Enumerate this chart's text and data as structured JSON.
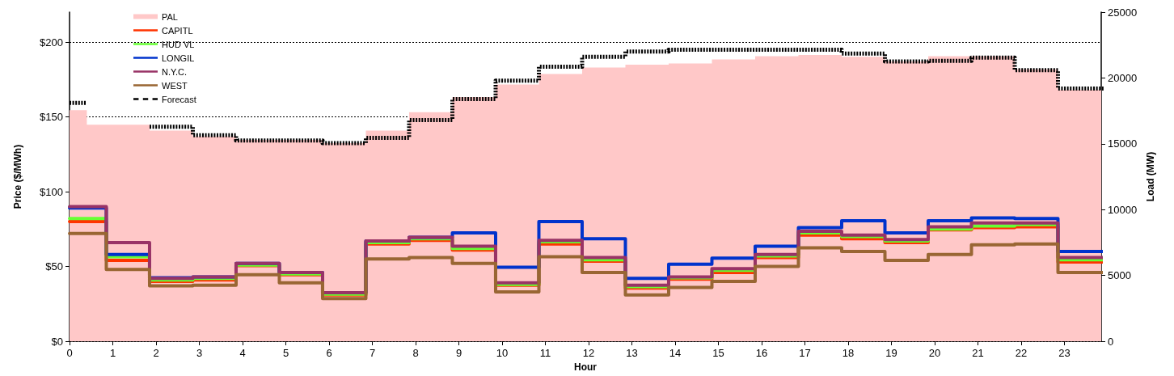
{
  "chart_data": {
    "type": "step",
    "xlabel": "Hour",
    "ylabel": "Price ($/MWh)",
    "y2label": "Load (MW)",
    "xlim": [
      0,
      23.85
    ],
    "xticks": [
      0,
      1,
      2,
      3,
      4,
      5,
      6,
      7,
      8,
      9,
      10,
      11,
      12,
      13,
      14,
      15,
      16,
      17,
      18,
      19,
      20,
      21,
      22,
      23
    ],
    "ylim": [
      0,
      220
    ],
    "yticks": [
      {
        "value": 0,
        "label": "$0"
      },
      {
        "value": 50,
        "label": "$50"
      },
      {
        "value": 100,
        "label": "$100"
      },
      {
        "value": 150,
        "label": "$150"
      },
      {
        "value": 200,
        "label": "$200"
      }
    ],
    "y2lim": [
      0,
      25000
    ],
    "y2ticks": [
      0,
      5000,
      10000,
      15000,
      20000,
      25000
    ],
    "grid": "y",
    "legend": "top left",
    "marker": "none",
    "line_style": "solid",
    "series": [
      {
        "name": "PAL",
        "type": "area",
        "axis": "y2",
        "color": "#ffc8c8",
        "x": [
          0,
          0.4,
          1.85,
          2.85,
          3.85,
          4.85,
          5.85,
          6.85,
          7.85,
          8.85,
          9.85,
          10.85,
          11.85,
          12.85,
          13.85,
          14.85,
          15.85,
          16.85,
          17.85,
          18.85,
          19.85,
          20.85,
          21.85,
          22.85
        ],
        "values": [
          17550,
          16450,
          16000,
          15550,
          15300,
          15300,
          15050,
          16000,
          17400,
          18550,
          19500,
          20300,
          20800,
          21000,
          21100,
          21400,
          21650,
          21750,
          21600,
          21250,
          21650,
          21650,
          20650,
          19100
        ]
      },
      {
        "name": "CAPITL",
        "color": "#ff3300",
        "x": [
          0,
          0.85,
          1.85,
          2.85,
          3.85,
          4.85,
          5.85,
          6.85,
          7.85,
          8.85,
          9.85,
          10.85,
          11.85,
          12.85,
          13.85,
          14.85,
          15.85,
          16.85,
          17.85,
          18.85,
          19.85,
          20.85,
          21.85,
          22.85
        ],
        "values": [
          80,
          54,
          40,
          41,
          50.5,
          44.5,
          31,
          65,
          67.5,
          61,
          37.5,
          65,
          53.5,
          35.5,
          41.5,
          46,
          56,
          71,
          68.5,
          66,
          74.5,
          76,
          76.5,
          53
        ]
      },
      {
        "name": "HUD VL",
        "color": "#66ff33",
        "x": [
          0,
          0.85,
          1.85,
          2.85,
          3.85,
          4.85,
          5.85,
          6.85,
          7.85,
          8.85,
          9.85,
          10.85,
          11.85,
          12.85,
          13.85,
          14.85,
          15.85,
          16.85,
          17.85,
          18.85,
          19.85,
          20.85,
          21.85,
          22.85
        ],
        "values": [
          82,
          56.5,
          41,
          42,
          51,
          45,
          31.5,
          66,
          68.5,
          62,
          38,
          66.5,
          54.5,
          36.5,
          42.5,
          47.5,
          57,
          72.5,
          70,
          67,
          75,
          77,
          78,
          54.5
        ]
      },
      {
        "name": "LONGIL",
        "color": "#0033cc",
        "x": [
          0,
          0.85,
          1.85,
          2.85,
          3.85,
          4.85,
          5.85,
          6.85,
          7.85,
          8.85,
          9.85,
          10.85,
          11.85,
          12.85,
          13.85,
          14.85,
          15.85,
          16.85,
          17.85,
          18.85,
          19.85,
          20.85,
          21.85,
          22.85
        ],
        "values": [
          89,
          58,
          42.5,
          43,
          52,
          46,
          32.5,
          67,
          69.5,
          72.5,
          49.5,
          80,
          68.5,
          42,
          51.5,
          55.5,
          63.5,
          76,
          80.5,
          72.5,
          80.5,
          82.5,
          82,
          60
        ]
      },
      {
        "name": "N.Y.C.",
        "color": "#993366",
        "x": [
          0,
          0.85,
          1.85,
          2.85,
          3.85,
          4.85,
          5.85,
          6.85,
          7.85,
          8.85,
          9.85,
          10.85,
          11.85,
          12.85,
          13.85,
          14.85,
          15.85,
          16.85,
          17.85,
          18.85,
          19.85,
          20.85,
          21.85,
          22.85
        ],
        "values": [
          90,
          66,
          42,
          43,
          52,
          46,
          32.5,
          67,
          69.5,
          63.5,
          39,
          67.5,
          56,
          37.5,
          43,
          48.5,
          58,
          73.5,
          71,
          68,
          76.5,
          79,
          79,
          56
        ]
      },
      {
        "name": "WEST",
        "color": "#996633",
        "x": [
          0,
          0.85,
          1.85,
          2.85,
          3.85,
          4.85,
          5.85,
          6.85,
          7.85,
          8.85,
          9.85,
          10.85,
          11.85,
          12.85,
          13.85,
          14.85,
          15.85,
          16.85,
          17.85,
          18.85,
          19.85,
          20.85,
          21.85,
          22.85
        ],
        "values": [
          72,
          48,
          37,
          37.5,
          44.5,
          39,
          28.5,
          55,
          56,
          52,
          33,
          56.5,
          46,
          31,
          36,
          40,
          50,
          62.5,
          60,
          54,
          58,
          64.5,
          65,
          46
        ]
      },
      {
        "name": "Forecast",
        "axis": "y2",
        "color": "#000000",
        "line_style": "dashed",
        "x": [
          0,
          0.4,
          1.85,
          2.85,
          3.85,
          4.85,
          5.85,
          6.85,
          7.85,
          8.85,
          9.85,
          10.85,
          11.85,
          12.85,
          13.85,
          14.85,
          15.85,
          16.85,
          17.85,
          18.85,
          19.85,
          20.85,
          21.85,
          22.85
        ],
        "values": [
          18100,
          null,
          16300,
          15650,
          15250,
          15250,
          15050,
          15450,
          16800,
          18400,
          19800,
          20850,
          21600,
          22000,
          22150,
          22150,
          22150,
          22150,
          21850,
          21250,
          21300,
          21550,
          20600,
          19200
        ]
      }
    ]
  }
}
